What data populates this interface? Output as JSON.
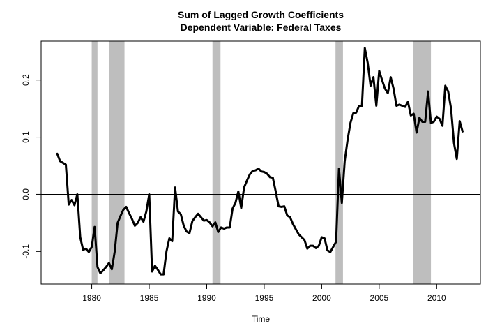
{
  "chart_data": {
    "type": "line",
    "title": "Sum of Lagged Growth Coefficients",
    "subtitle": "Dependent Variable: Federal Taxes",
    "xlabel": "Time",
    "ylabel": "",
    "xlim": [
      1975.6,
      2013.8
    ],
    "ylim": [
      -0.157,
      0.268
    ],
    "xticks": [
      1980,
      1985,
      1990,
      1995,
      2000,
      2005,
      2010
    ],
    "xtick_labels": [
      "1980",
      "1985",
      "1990",
      "1995",
      "2000",
      "2005",
      "2010"
    ],
    "yticks": [
      -0.1,
      0.0,
      0.1,
      0.2
    ],
    "ytick_labels": [
      "-0.1",
      "0.0",
      "0.1",
      "0.2"
    ],
    "reference_line": 0.0,
    "grid": false,
    "recession_bands": [
      [
        1980.0,
        1980.5
      ],
      [
        1981.5,
        1982.85
      ],
      [
        1990.5,
        1991.2
      ],
      [
        2001.2,
        2001.85
      ],
      [
        2007.95,
        2009.5
      ]
    ],
    "colors": {
      "line": "#000000",
      "band": "#bebebe",
      "axis": "#000000",
      "background": "#ffffff"
    },
    "series": [
      {
        "x": [
          1977.0,
          1977.25,
          1977.5,
          1977.75,
          1978.0,
          1978.25,
          1978.5,
          1978.75,
          1979.0,
          1979.25,
          1979.5,
          1979.75,
          1980.0,
          1980.25,
          1980.5,
          1980.75,
          1981.0,
          1981.25,
          1981.5,
          1981.75,
          1982.0,
          1982.25,
          1982.5,
          1982.75,
          1983.0,
          1983.25,
          1983.5,
          1983.75,
          1984.0,
          1984.25,
          1984.5,
          1984.75,
          1985.0,
          1985.25,
          1985.5,
          1985.75,
          1986.0,
          1986.25,
          1986.5,
          1986.75,
          1987.0,
          1987.25,
          1987.5,
          1987.75,
          1988.0,
          1988.25,
          1988.5,
          1988.75,
          1989.0,
          1989.25,
          1989.5,
          1989.75,
          1990.0,
          1990.25,
          1990.5,
          1990.75,
          1991.0,
          1991.25,
          1991.5,
          1991.75,
          1992.0,
          1992.25,
          1992.5,
          1992.75,
          1993.0,
          1993.25,
          1993.5,
          1993.75,
          1994.0,
          1994.25,
          1994.5,
          1994.75,
          1995.0,
          1995.25,
          1995.5,
          1995.75,
          1996.0,
          1996.25,
          1996.5,
          1996.75,
          1997.0,
          1997.25,
          1997.5,
          1997.75,
          1998.0,
          1998.25,
          1998.5,
          1998.75,
          1999.0,
          1999.25,
          1999.5,
          1999.75,
          2000.0,
          2000.25,
          2000.5,
          2000.75,
          2001.0,
          2001.25,
          2001.5,
          2001.75,
          2002.0,
          2002.25,
          2002.5,
          2002.75,
          2003.0,
          2003.25,
          2003.5,
          2003.75,
          2004.0,
          2004.25,
          2004.5,
          2004.75,
          2005.0,
          2005.25,
          2005.5,
          2005.75,
          2006.0,
          2006.25,
          2006.5,
          2006.75,
          2007.0,
          2007.25,
          2007.5,
          2007.75,
          2008.0,
          2008.25,
          2008.5,
          2008.75,
          2009.0,
          2009.25,
          2009.5,
          2009.75,
          2010.0,
          2010.25,
          2010.5,
          2010.75,
          2011.0,
          2011.25,
          2011.5,
          2011.75,
          2012.0,
          2012.25
        ],
        "y": [
          0.071,
          0.058,
          0.055,
          0.052,
          -0.018,
          -0.01,
          -0.019,
          0.0,
          -0.075,
          -0.097,
          -0.095,
          -0.101,
          -0.092,
          -0.057,
          -0.127,
          -0.138,
          -0.133,
          -0.127,
          -0.12,
          -0.131,
          -0.1,
          -0.05,
          -0.038,
          -0.027,
          -0.022,
          -0.033,
          -0.043,
          -0.055,
          -0.05,
          -0.04,
          -0.048,
          -0.03,
          0.0,
          -0.135,
          -0.125,
          -0.132,
          -0.14,
          -0.14,
          -0.1,
          -0.077,
          -0.082,
          0.012,
          -0.03,
          -0.035,
          -0.055,
          -0.065,
          -0.068,
          -0.047,
          -0.04,
          -0.034,
          -0.04,
          -0.046,
          -0.045,
          -0.049,
          -0.056,
          -0.049,
          -0.066,
          -0.058,
          -0.06,
          -0.058,
          -0.058,
          -0.025,
          -0.015,
          0.005,
          -0.024,
          0.012,
          0.024,
          0.035,
          0.041,
          0.042,
          0.045,
          0.04,
          0.039,
          0.036,
          0.03,
          0.029,
          0.005,
          -0.021,
          -0.022,
          -0.021,
          -0.037,
          -0.04,
          -0.052,
          -0.061,
          -0.07,
          -0.075,
          -0.08,
          -0.095,
          -0.09,
          -0.09,
          -0.094,
          -0.09,
          -0.075,
          -0.077,
          -0.098,
          -0.101,
          -0.092,
          -0.083,
          0.045,
          -0.015,
          0.058,
          0.095,
          0.125,
          0.142,
          0.143,
          0.155,
          0.155,
          0.256,
          0.23,
          0.19,
          0.205,
          0.155,
          0.216,
          0.2,
          0.185,
          0.177,
          0.205,
          0.185,
          0.155,
          0.157,
          0.155,
          0.153,
          0.162,
          0.138,
          0.141,
          0.108,
          0.134,
          0.127,
          0.127,
          0.18,
          0.125,
          0.127,
          0.136,
          0.132,
          0.12,
          0.19,
          0.18,
          0.15,
          0.09,
          0.062,
          0.128,
          0.11
        ]
      }
    ]
  }
}
